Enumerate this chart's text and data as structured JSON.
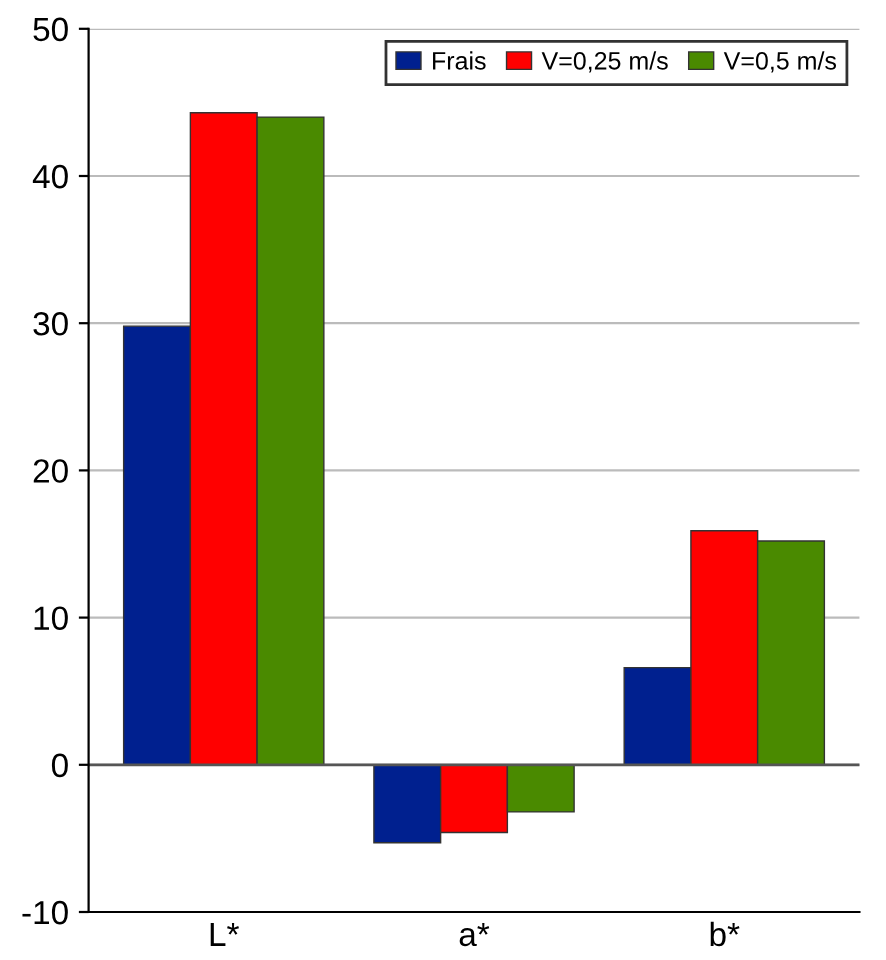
{
  "chart_data": {
    "type": "bar",
    "categories": [
      "L*",
      "a*",
      "b*"
    ],
    "series": [
      {
        "name": "Frais",
        "color": "#00208f",
        "values": [
          29.8,
          -5.3,
          6.6
        ]
      },
      {
        "name": "V=0,25 m/s",
        "color": "#ff0000",
        "values": [
          44.3,
          -4.6,
          15.9
        ]
      },
      {
        "name": "V=0,5 m/s",
        "color": "#4a8a00",
        "values": [
          44,
          -3.2,
          15.2
        ]
      }
    ],
    "ylim": [
      -10,
      50
    ],
    "yticks": [
      -10,
      0,
      10,
      20,
      30,
      40,
      50
    ],
    "legend": "top right",
    "grid": "y"
  }
}
